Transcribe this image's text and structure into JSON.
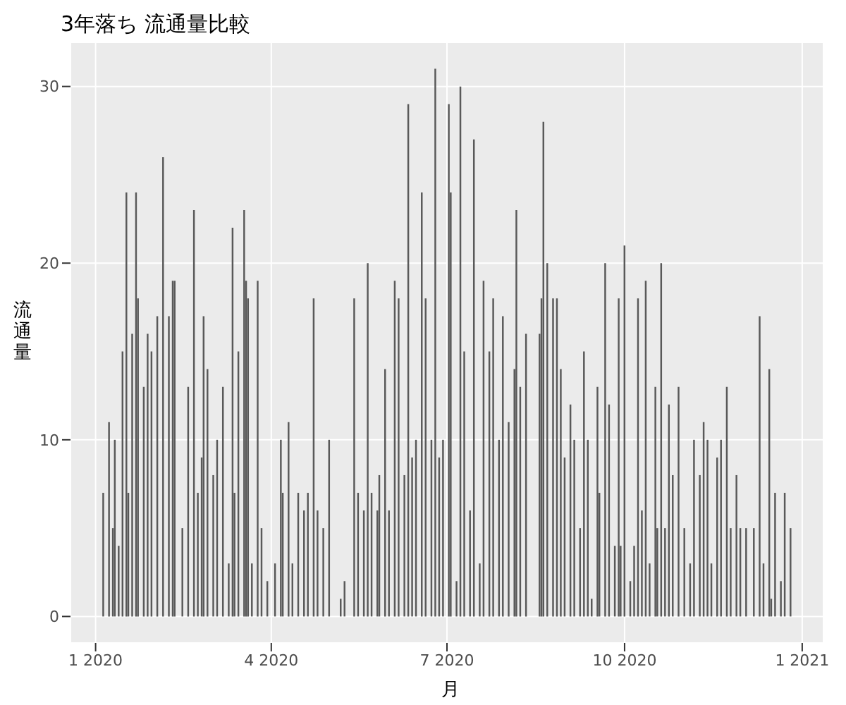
{
  "chart_data": {
    "type": "bar",
    "title": "3年落ち 流通量比較",
    "xlabel": "月",
    "ylabel": "流通量",
    "color": "#595959",
    "grid": true,
    "x": [
      "2020-01-05",
      "2020-01-08",
      "2020-01-10",
      "2020-01-11",
      "2020-01-13",
      "2020-01-15",
      "2020-01-17",
      "2020-01-18",
      "2020-01-20",
      "2020-01-22",
      "2020-01-23",
      "2020-01-26",
      "2020-01-28",
      "2020-01-30",
      "2020-02-02",
      "2020-02-05",
      "2020-02-08",
      "2020-02-10",
      "2020-02-11",
      "2020-02-15",
      "2020-02-18",
      "2020-02-21",
      "2020-02-23",
      "2020-02-25",
      "2020-02-26",
      "2020-02-28",
      "2020-03-02",
      "2020-03-04",
      "2020-03-07",
      "2020-03-10",
      "2020-03-12",
      "2020-03-13",
      "2020-03-15",
      "2020-03-18",
      "2020-03-19",
      "2020-03-20",
      "2020-03-22",
      "2020-03-25",
      "2020-03-27",
      "2020-03-30",
      "2020-04-03",
      "2020-04-06",
      "2020-04-07",
      "2020-04-10",
      "2020-04-12",
      "2020-04-15",
      "2020-04-18",
      "2020-04-20",
      "2020-04-23",
      "2020-04-25",
      "2020-04-28",
      "2020-05-01",
      "2020-05-07",
      "2020-05-09",
      "2020-05-14",
      "2020-05-16",
      "2020-05-19",
      "2020-05-21",
      "2020-05-23",
      "2020-05-26",
      "2020-05-27",
      "2020-05-30",
      "2020-06-01",
      "2020-06-04",
      "2020-06-06",
      "2020-06-09",
      "2020-06-11",
      "2020-06-13",
      "2020-06-15",
      "2020-06-18",
      "2020-06-20",
      "2020-06-23",
      "2020-06-25",
      "2020-06-27",
      "2020-06-29",
      "2020-07-02",
      "2020-07-03",
      "2020-07-06",
      "2020-07-08",
      "2020-07-10",
      "2020-07-13",
      "2020-07-15",
      "2020-07-18",
      "2020-07-20",
      "2020-07-23",
      "2020-07-25",
      "2020-07-28",
      "2020-07-30",
      "2020-08-02",
      "2020-08-05",
      "2020-08-06",
      "2020-08-08",
      "2020-08-11",
      "2020-08-18",
      "2020-08-19",
      "2020-08-20",
      "2020-08-22",
      "2020-08-25",
      "2020-08-27",
      "2020-08-29",
      "2020-08-31",
      "2020-09-03",
      "2020-09-05",
      "2020-09-08",
      "2020-09-10",
      "2020-09-12",
      "2020-09-14",
      "2020-09-17",
      "2020-09-18",
      "2020-09-21",
      "2020-09-23",
      "2020-09-26",
      "2020-09-28",
      "2020-09-29",
      "2020-10-01",
      "2020-10-04",
      "2020-10-06",
      "2020-10-08",
      "2020-10-10",
      "2020-10-12",
      "2020-10-14",
      "2020-10-17",
      "2020-10-18",
      "2020-10-20",
      "2020-10-22",
      "2020-10-24",
      "2020-10-26",
      "2020-10-29",
      "2020-11-01",
      "2020-11-04",
      "2020-11-06",
      "2020-11-09",
      "2020-11-11",
      "2020-11-13",
      "2020-11-15",
      "2020-11-18",
      "2020-11-20",
      "2020-11-23",
      "2020-11-25",
      "2020-11-28",
      "2020-11-30",
      "2020-12-03",
      "2020-12-07",
      "2020-12-10",
      "2020-12-12",
      "2020-12-15",
      "2020-12-16",
      "2020-12-18",
      "2020-12-21",
      "2020-12-23",
      "2020-12-26"
    ],
    "values": [
      7,
      11,
      5,
      10,
      4,
      15,
      24,
      7,
      16,
      24,
      18,
      13,
      16,
      15,
      17,
      26,
      17,
      19,
      19,
      5,
      13,
      23,
      7,
      9,
      17,
      14,
      8,
      10,
      13,
      3,
      22,
      7,
      15,
      23,
      19,
      18,
      3,
      19,
      5,
      2,
      3,
      10,
      7,
      11,
      3,
      7,
      6,
      7,
      18,
      6,
      5,
      10,
      1,
      2,
      18,
      7,
      6,
      20,
      7,
      6,
      8,
      14,
      6,
      19,
      18,
      8,
      29,
      9,
      10,
      24,
      18,
      10,
      31,
      9,
      10,
      29,
      24,
      2,
      30,
      15,
      6,
      27,
      3,
      19,
      15,
      18,
      10,
      17,
      11,
      14,
      23,
      13,
      16,
      16,
      18,
      28,
      20,
      18,
      18,
      14,
      9,
      12,
      10,
      5,
      15,
      10,
      1,
      13,
      7,
      20,
      12,
      4,
      18,
      4,
      21,
      2,
      4,
      18,
      6,
      19,
      3,
      13,
      5,
      20,
      5,
      12,
      8,
      13,
      5,
      3,
      10,
      8,
      11,
      10,
      3,
      9,
      10,
      13,
      5,
      8,
      5,
      5,
      5,
      17,
      3,
      14,
      1,
      7,
      2,
      7,
      5
    ],
    "xlim": [
      "2019-12-19",
      "2021-01-12"
    ],
    "xticks": [
      {
        "value": "2020-01-01",
        "label": "1 2020"
      },
      {
        "value": "2020-04-01",
        "label": "4 2020"
      },
      {
        "value": "2020-07-01",
        "label": "7 2020"
      },
      {
        "value": "2020-10-01",
        "label": "10 2020"
      },
      {
        "value": "2021-01-01",
        "label": "1 2021"
      }
    ],
    "ylim": [
      -1.5,
      32.5
    ],
    "yticks": [
      0,
      10,
      20,
      30
    ]
  }
}
